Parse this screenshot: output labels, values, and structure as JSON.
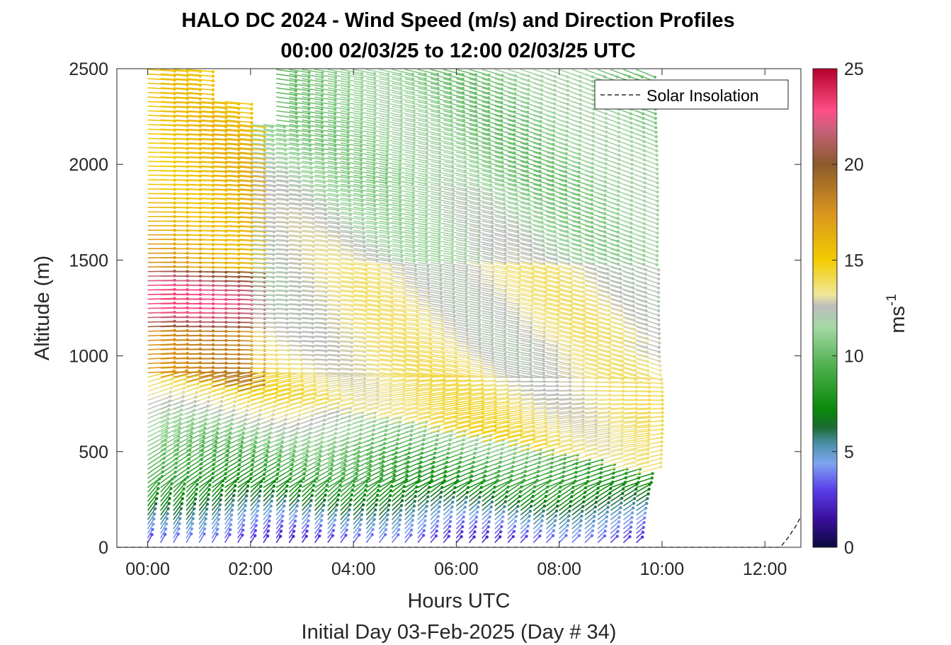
{
  "chart_data": {
    "type": "wind_barb_profile",
    "title_line1": "HALO DC 2024 - Wind Speed (m/s) and Direction Profiles",
    "title_line2": "00:00 02/03/25 to 12:00 02/03/25  UTC",
    "xlabel": "Hours UTC",
    "ylabel": "Altitude (m)",
    "subtitle": "Initial Day 03-Feb-2025 (Day # 34)",
    "x_ticks": [
      "00:00",
      "02:00",
      "04:00",
      "06:00",
      "08:00",
      "10:00",
      "12:00"
    ],
    "x_tick_values": [
      0,
      2,
      4,
      6,
      8,
      10,
      12
    ],
    "xlim": [
      -0.6,
      12.7
    ],
    "y_ticks": [
      "0",
      "500",
      "1000",
      "1500",
      "2000",
      "2500"
    ],
    "y_tick_values": [
      0,
      500,
      1000,
      1500,
      2000,
      2500
    ],
    "ylim": [
      0,
      2500
    ],
    "legend": {
      "label": "Solar Insolation",
      "location": "top-right",
      "line_color": "#000000",
      "line_style": "dashed"
    },
    "colorbar": {
      "label_base": "ms",
      "label_exp": "-1",
      "ticks": [
        "0",
        "5",
        "10",
        "15",
        "20",
        "25"
      ],
      "tick_values": [
        0,
        5,
        10,
        15,
        20,
        25
      ],
      "range": [
        0,
        25
      ],
      "colors": [
        {
          "v": 0,
          "c": "#0a0a3c"
        },
        {
          "v": 1.5,
          "c": "#3a0f9e"
        },
        {
          "v": 3.0,
          "c": "#5a3ee8"
        },
        {
          "v": 4.4,
          "c": "#7da6f0"
        },
        {
          "v": 5.4,
          "c": "#4a90a8"
        },
        {
          "v": 6.3,
          "c": "#1b6b2e"
        },
        {
          "v": 7.2,
          "c": "#0a8a0a"
        },
        {
          "v": 9.5,
          "c": "#4fb04f"
        },
        {
          "v": 11.5,
          "c": "#a4d8a4"
        },
        {
          "v": 12.6,
          "c": "#bdbdbd"
        },
        {
          "v": 13.2,
          "c": "#f0e69a"
        },
        {
          "v": 15.0,
          "c": "#f2cc00"
        },
        {
          "v": 17.5,
          "c": "#d9941f"
        },
        {
          "v": 20.0,
          "c": "#8b5a2b"
        },
        {
          "v": 21.8,
          "c": "#c7607a"
        },
        {
          "v": 22.8,
          "c": "#ff4f88"
        },
        {
          "v": 25.0,
          "c": "#b5002a"
        }
      ]
    },
    "barb_grid": {
      "profile_times_hours": [
        0.0,
        0.25,
        0.5,
        0.75,
        1.0,
        1.25,
        1.5,
        1.75,
        2.0,
        2.25,
        2.5,
        2.75,
        3.0,
        3.25,
        3.5,
        3.75,
        4.0,
        4.25,
        4.5,
        4.75,
        5.0,
        5.25,
        5.5,
        5.75,
        6.0,
        6.25,
        6.5,
        6.75,
        7.0,
        7.25,
        7.5,
        7.75,
        8.0,
        8.25,
        8.5,
        8.75,
        9.0,
        9.25,
        9.5
      ],
      "altitudes_m": [
        24,
        48,
        72,
        96,
        120,
        144,
        168,
        192,
        216,
        240,
        264,
        288,
        312,
        336,
        360,
        384,
        408,
        432,
        456,
        480,
        504,
        528,
        552,
        576,
        600,
        624,
        648,
        672,
        696,
        720,
        744,
        768,
        792,
        816,
        840,
        864,
        888,
        912,
        936,
        960,
        984,
        1008,
        1032,
        1056,
        1080,
        1104,
        1128,
        1152,
        1176,
        1200,
        1224,
        1248,
        1272,
        1296,
        1320,
        1344,
        1368,
        1392,
        1416,
        1440,
        1464,
        1488,
        1512,
        1536,
        1560,
        1584,
        1608,
        1632,
        1656,
        1680,
        1704,
        1728,
        1752,
        1776,
        1800,
        1824,
        1848,
        1872,
        1896,
        1920,
        1944,
        1968,
        1992,
        2016,
        2040,
        2064,
        2088,
        2112,
        2136,
        2160,
        2184,
        2208,
        2232,
        2256,
        2280,
        2304,
        2328,
        2352,
        2376,
        2400,
        2424,
        2448,
        2472,
        2496
      ]
    },
    "solar_insolation_series": {
      "x_hours": [
        -0.6,
        12.3,
        12.45,
        12.6,
        12.7
      ],
      "y_m": [
        0,
        0,
        50,
        110,
        160
      ]
    }
  }
}
